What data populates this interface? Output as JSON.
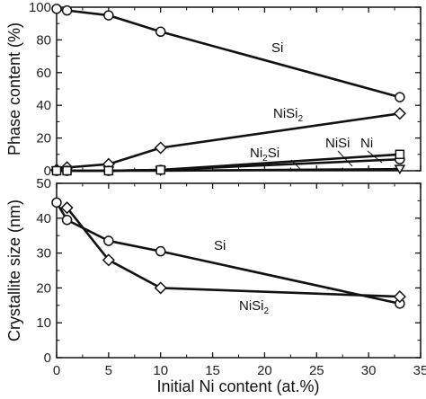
{
  "chart_data": [
    {
      "type": "line",
      "xlabel": "",
      "ylabel": "Phase content (%)",
      "xlim": [
        0,
        35
      ],
      "ylim": [
        0,
        100
      ],
      "yticks": [
        0,
        20,
        40,
        60,
        80,
        100
      ],
      "series": [
        {
          "name": "Si",
          "marker": "circle",
          "x": [
            0,
            1,
            5,
            10,
            33
          ],
          "y": [
            99,
            98,
            95,
            85,
            45
          ]
        },
        {
          "name": "NiSi2",
          "marker": "diamond",
          "x": [
            0,
            1,
            5,
            10,
            33
          ],
          "y": [
            0.5,
            2,
            4,
            14,
            35
          ]
        },
        {
          "name": "Ni2Si",
          "marker": "triangle-down",
          "x": [
            0,
            1,
            5,
            10,
            33
          ],
          "y": [
            0,
            0,
            0,
            0,
            1
          ]
        },
        {
          "name": "NiSi",
          "marker": "circle",
          "x": [
            0,
            1,
            5,
            10,
            33
          ],
          "y": [
            0,
            0,
            0,
            0.5,
            7
          ]
        },
        {
          "name": "Ni",
          "marker": "square",
          "x": [
            0,
            1,
            5,
            10,
            33
          ],
          "y": [
            0,
            0,
            0,
            0.5,
            10
          ]
        }
      ],
      "annotations": [
        {
          "series": "Si",
          "text": "Si"
        },
        {
          "series": "NiSi2",
          "text": "NiSi",
          "sub": "2"
        },
        {
          "series": "Ni2Si",
          "text": "Ni",
          "sub": "2",
          "rest": "Si"
        },
        {
          "series": "NiSi",
          "text": "NiSi"
        },
        {
          "series": "Ni",
          "text": "Ni"
        }
      ]
    },
    {
      "type": "line",
      "xlabel": "Initial Ni content (at.%)",
      "ylabel": "Crystallite size (nm)",
      "xlim": [
        0,
        35
      ],
      "ylim": [
        0,
        50
      ],
      "xticks": [
        0,
        5,
        10,
        15,
        20,
        25,
        30,
        35
      ],
      "yticks": [
        0,
        10,
        20,
        30,
        40,
        50
      ],
      "series": [
        {
          "name": "Si",
          "marker": "circle",
          "x": [
            0,
            1,
            5,
            10,
            33
          ],
          "y": [
            44.5,
            39.5,
            33.5,
            30.5,
            15.5
          ]
        },
        {
          "name": "NiSi2",
          "marker": "diamond",
          "x": [
            1,
            5,
            10,
            33
          ],
          "y": [
            43,
            28,
            20,
            17.5
          ]
        }
      ],
      "annotations": [
        {
          "series": "Si",
          "text": "Si"
        },
        {
          "series": "NiSi2",
          "text": "NiSi",
          "sub": "2"
        }
      ]
    }
  ]
}
